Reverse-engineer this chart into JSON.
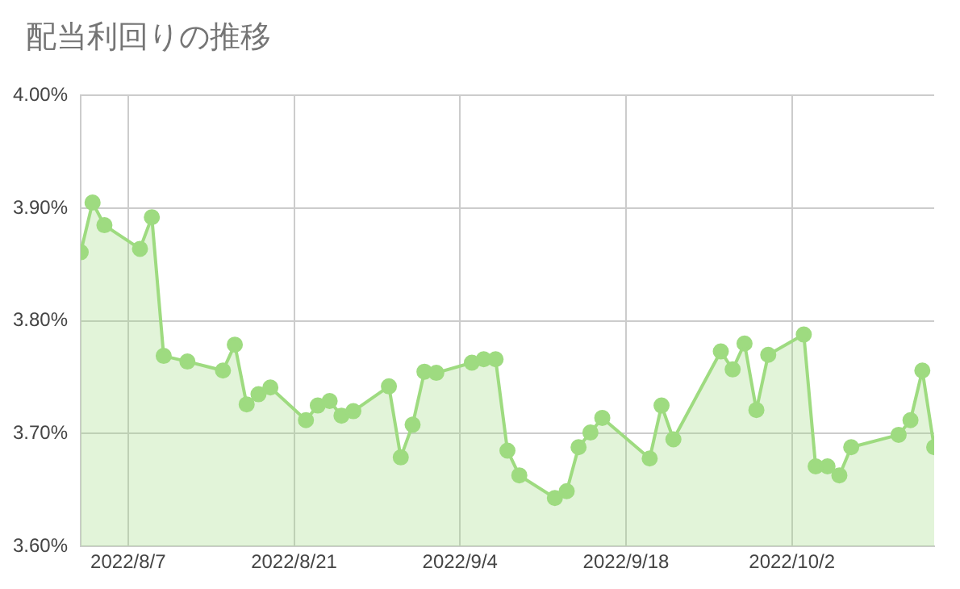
{
  "chart_data": {
    "type": "area",
    "title": "配当利回りの推移",
    "x": [
      "2022-08-03",
      "2022-08-04",
      "2022-08-05",
      "2022-08-08",
      "2022-08-09",
      "2022-08-10",
      "2022-08-12",
      "2022-08-15",
      "2022-08-16",
      "2022-08-17",
      "2022-08-18",
      "2022-08-19",
      "2022-08-22",
      "2022-08-23",
      "2022-08-24",
      "2022-08-25",
      "2022-08-26",
      "2022-08-29",
      "2022-08-30",
      "2022-08-31",
      "2022-09-01",
      "2022-09-02",
      "2022-09-05",
      "2022-09-06",
      "2022-09-07",
      "2022-09-08",
      "2022-09-09",
      "2022-09-12",
      "2022-09-13",
      "2022-09-14",
      "2022-09-15",
      "2022-09-16",
      "2022-09-20",
      "2022-09-21",
      "2022-09-22",
      "2022-09-26",
      "2022-09-27",
      "2022-09-28",
      "2022-09-29",
      "2022-09-30",
      "2022-10-03",
      "2022-10-04",
      "2022-10-05",
      "2022-10-06",
      "2022-10-07",
      "2022-10-11",
      "2022-10-12",
      "2022-10-13",
      "2022-10-14"
    ],
    "series": [
      {
        "color": "#9edb80",
        "values": [
          3.861,
          3.905,
          3.885,
          3.864,
          3.892,
          3.769,
          3.764,
          3.756,
          3.779,
          3.726,
          3.735,
          3.741,
          3.712,
          3.725,
          3.729,
          3.716,
          3.72,
          3.742,
          3.679,
          3.708,
          3.755,
          3.754,
          3.763,
          3.766,
          3.766,
          3.685,
          3.663,
          3.643,
          3.649,
          3.688,
          3.701,
          3.714,
          3.678,
          3.725,
          3.695,
          3.773,
          3.757,
          3.78,
          3.721,
          3.77,
          3.788,
          3.671,
          3.671,
          3.663,
          3.688,
          3.699,
          3.712,
          3.756,
          3.688
        ]
      }
    ],
    "xlim": [
      "2022-08-03",
      "2022-10-14"
    ],
    "xticks": [
      {
        "value": "2022-08-07",
        "label": "2022/8/7"
      },
      {
        "value": "2022-08-21",
        "label": "2022/8/21"
      },
      {
        "value": "2022-09-04",
        "label": "2022/9/4"
      },
      {
        "value": "2022-09-18",
        "label": "2022/9/18"
      },
      {
        "value": "2022-10-02",
        "label": "2022/10/2"
      }
    ],
    "ylim": [
      3.6,
      4.0
    ],
    "yticks": [
      {
        "value": 3.6,
        "label": "3.60%"
      },
      {
        "value": 3.7,
        "label": "3.70%"
      },
      {
        "value": 3.8,
        "label": "3.80%"
      },
      {
        "value": 3.9,
        "label": "3.90%"
      },
      {
        "value": 4.0,
        "label": "4.00%"
      }
    ],
    "grid": true,
    "legend": false,
    "marker": "circle",
    "line_style": "solid"
  }
}
